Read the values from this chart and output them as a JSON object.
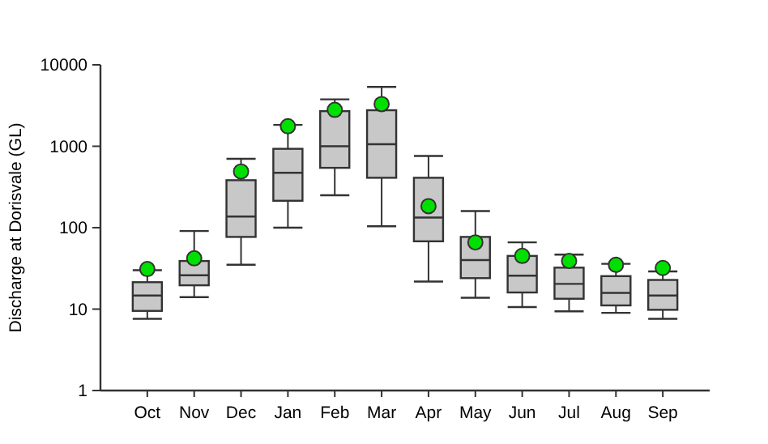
{
  "chart_data": {
    "type": "box",
    "ylabel": "Discharge at Dorisvale (GL)",
    "categories": [
      "Oct",
      "Nov",
      "Dec",
      "Jan",
      "Feb",
      "Mar",
      "Apr",
      "May",
      "Jun",
      "Jul",
      "Aug",
      "Sep"
    ],
    "log": true,
    "ylim": [
      1,
      10000
    ],
    "yticks": [
      1,
      10,
      100,
      1000,
      10000
    ],
    "grid": false,
    "series": [
      {
        "color": "#c8c8c8",
        "boxes": [
          {
            "low": 7.6,
            "q1": 9.5,
            "median": 14.7,
            "q3": 21.4,
            "high": 30
          },
          {
            "low": 14,
            "q1": 19.6,
            "median": 26,
            "q3": 39,
            "high": 91
          },
          {
            "low": 35,
            "q1": 77,
            "median": 137,
            "q3": 383,
            "high": 700
          },
          {
            "low": 100,
            "q1": 214,
            "median": 473,
            "q3": 930,
            "high": 1830
          },
          {
            "low": 250,
            "q1": 543,
            "median": 1000,
            "q3": 2700,
            "high": 3770
          },
          {
            "low": 104,
            "q1": 410,
            "median": 1060,
            "q3": 2770,
            "high": 5360
          },
          {
            "low": 21.8,
            "q1": 68,
            "median": 133,
            "q3": 410,
            "high": 760
          },
          {
            "low": 13.8,
            "q1": 24,
            "median": 40,
            "q3": 77,
            "high": 160
          },
          {
            "low": 10.6,
            "q1": 16,
            "median": 25.7,
            "q3": 45,
            "high": 66
          },
          {
            "low": 9.4,
            "q1": 13.4,
            "median": 20.4,
            "q3": 32.3,
            "high": 46.7
          },
          {
            "low": 9,
            "q1": 11.1,
            "median": 15.8,
            "q3": 25.4,
            "high": 36
          },
          {
            "low": 7.6,
            "q1": 9.8,
            "median": 14.7,
            "q3": 22.8,
            "high": 29
          }
        ]
      },
      {
        "type": "scatter",
        "color": "#00e000",
        "marker": "circle",
        "x": [
          "Oct",
          "Nov",
          "Dec",
          "Jan",
          "Feb",
          "Mar",
          "Apr",
          "May",
          "Jun",
          "Jul",
          "Aug",
          "Sep"
        ],
        "values": [
          31,
          42,
          490,
          1760,
          2800,
          3300,
          184,
          66,
          45,
          39,
          35,
          32
        ]
      }
    ]
  }
}
